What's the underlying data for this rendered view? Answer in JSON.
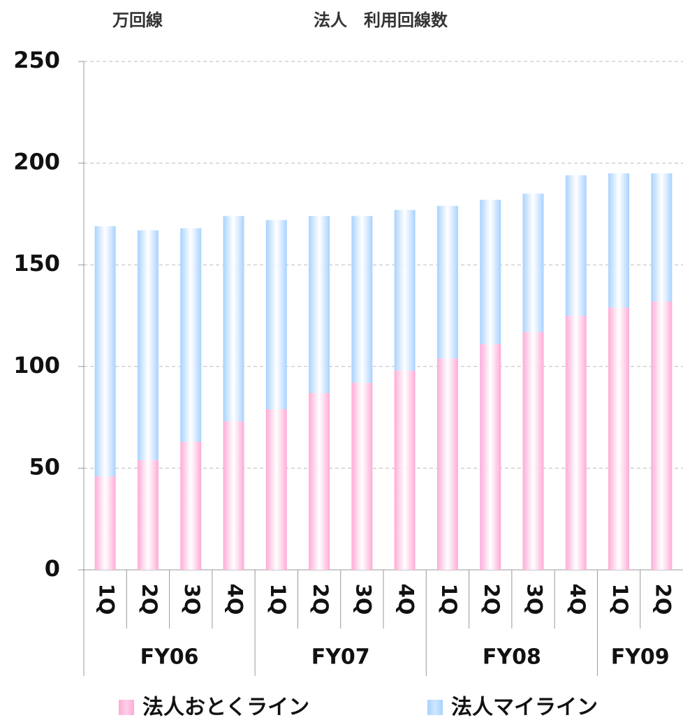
{
  "chart_data": {
    "type": "stacked_bar",
    "title": "法人　利用回線数",
    "y_axis_label": "万回線",
    "categories": [
      "1Q",
      "2Q",
      "3Q",
      "4Q",
      "1Q",
      "2Q",
      "3Q",
      "4Q",
      "1Q",
      "2Q",
      "3Q",
      "4Q",
      "1Q",
      "2Q"
    ],
    "groups": [
      "FY06",
      "FY07",
      "FY08",
      "FY09"
    ],
    "series": [
      {
        "name": "法人おとくライン",
        "color": "#ffaad6",
        "values": [
          46,
          54,
          63,
          73,
          79,
          87,
          92,
          98,
          104,
          111,
          117,
          125,
          129,
          132
        ]
      },
      {
        "name": "法人マイライン",
        "color": "#a8d2ff",
        "values": [
          123,
          113,
          105,
          101,
          93,
          87,
          82,
          79,
          75,
          71,
          68,
          69,
          66,
          63
        ]
      }
    ],
    "ylim": [
      0,
      250
    ],
    "yticks": [
      0,
      50,
      100,
      150,
      200,
      250
    ],
    "grid": true,
    "legend": "bottom"
  }
}
